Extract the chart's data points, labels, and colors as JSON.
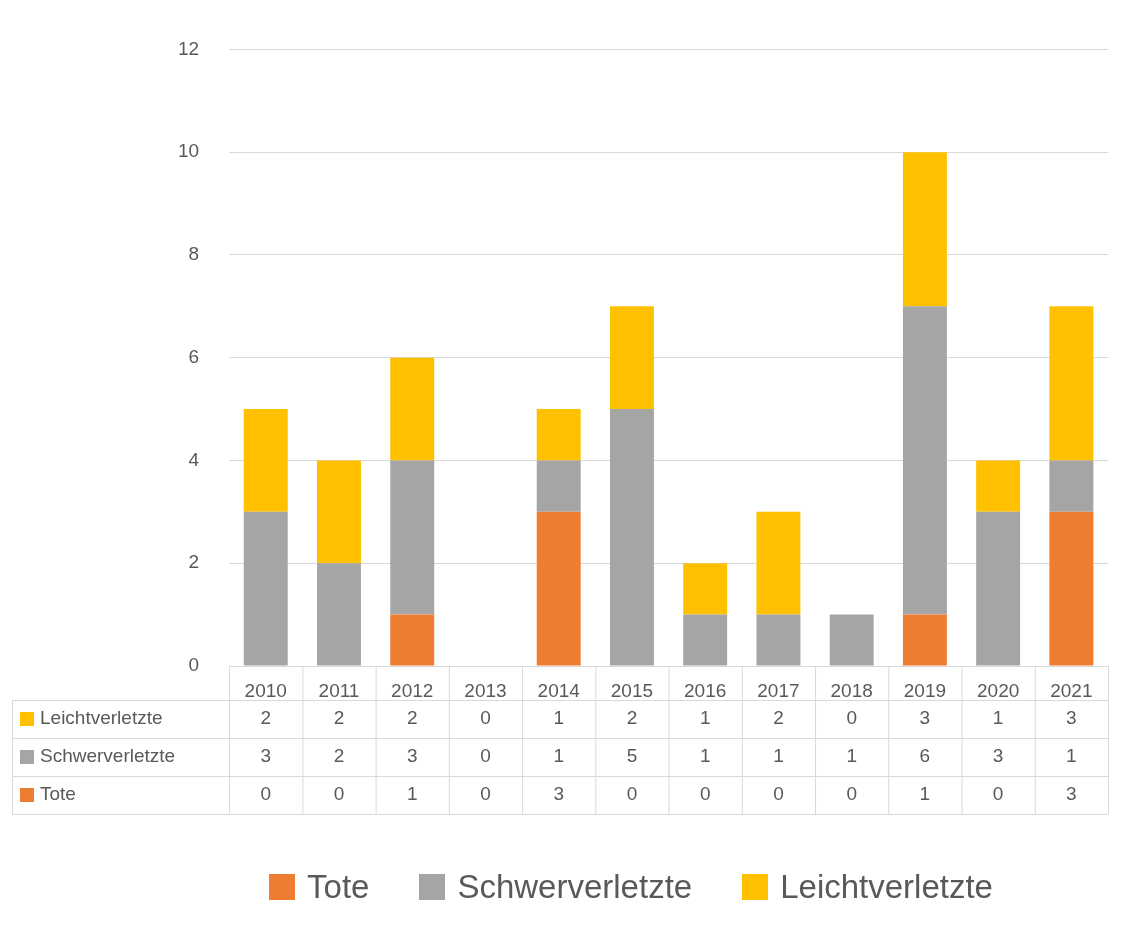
{
  "chart_data": {
    "type": "bar",
    "stacked": true,
    "categories": [
      "2010",
      "2011",
      "2012",
      "2013",
      "2014",
      "2015",
      "2016",
      "2017",
      "2018",
      "2019",
      "2020",
      "2021"
    ],
    "series": [
      {
        "name": "Tote",
        "color": "#ed7d31",
        "values": [
          0,
          0,
          1,
          0,
          3,
          0,
          0,
          0,
          0,
          1,
          0,
          3
        ]
      },
      {
        "name": "Schwerverletzte",
        "color": "#a5a5a5",
        "values": [
          3,
          2,
          3,
          0,
          1,
          5,
          1,
          1,
          1,
          6,
          3,
          1
        ]
      },
      {
        "name": "Leichtverletzte",
        "color": "#ffc000",
        "values": [
          2,
          2,
          2,
          0,
          1,
          2,
          1,
          2,
          0,
          3,
          1,
          3
        ]
      }
    ],
    "ylim": [
      0,
      12
    ],
    "yticks": [
      0,
      2,
      4,
      6,
      8,
      10,
      12
    ],
    "grid": "y",
    "legend": "bottom",
    "data_labels": true
  }
}
